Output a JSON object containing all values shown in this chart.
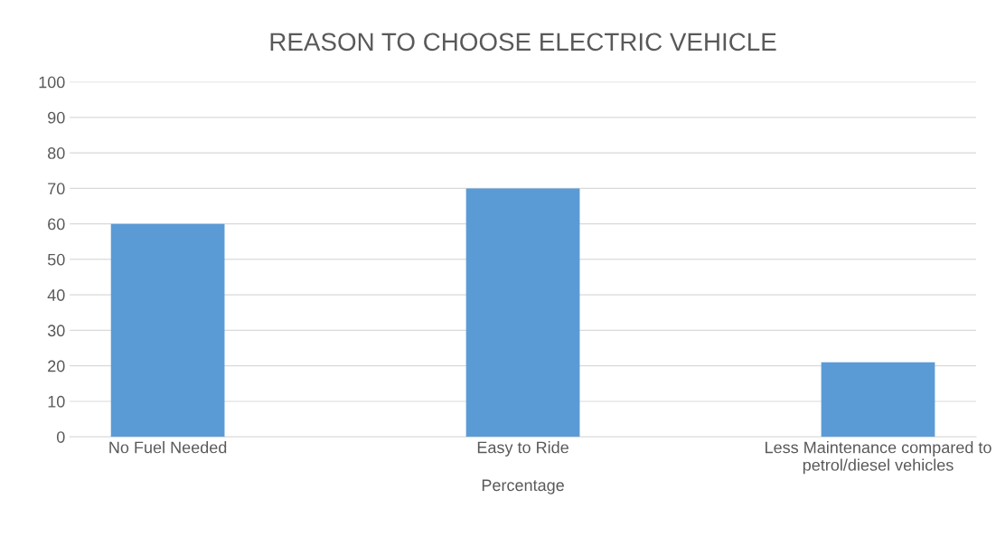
{
  "chart_data": {
    "type": "bar",
    "title": "REASON TO CHOOSE ELECTRIC VEHICLE",
    "xlabel": "Percentage",
    "categories": [
      "No Fuel Needed",
      "Easy to Ride",
      "Less Maintenance compared to petrol/diesel vehicles"
    ],
    "values": [
      60,
      70,
      21
    ],
    "color": "#5b9bd5",
    "ylim": [
      0,
      100
    ],
    "yticks": [
      0,
      10,
      20,
      30,
      40,
      50,
      60,
      70,
      80,
      90,
      100
    ],
    "grid": "y"
  }
}
